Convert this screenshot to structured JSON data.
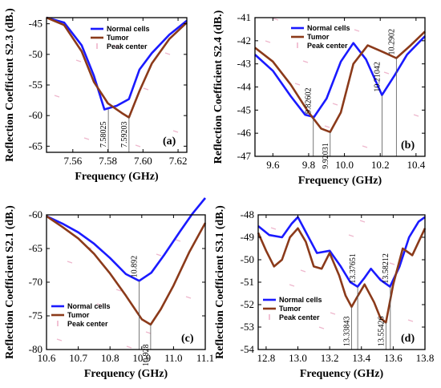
{
  "colors": {
    "normal": "#1a1aff",
    "tumor": "#8b3a1a",
    "peak": "#e89ab8"
  },
  "chart_data": [
    {
      "type": "line",
      "panel_label": "(a)",
      "xlabel": "Frequency (GHz)",
      "ylabel": "Reflection Coefficient S2.3 (dB.)",
      "xlim": [
        7.545,
        7.625
      ],
      "ylim": [
        -66,
        -44
      ],
      "xticks": [
        7.56,
        7.58,
        7.6,
        7.62
      ],
      "xtick_labels": [
        "7.56",
        "7.58",
        "7.60",
        "7.62"
      ],
      "yticks": [
        -45,
        -50,
        -55,
        -60,
        -65
      ],
      "ytick_labels": [
        "-45",
        "-50",
        "-55",
        "-60",
        "-65"
      ],
      "legend": {
        "placement": "top-center",
        "entries": [
          "Normal cells",
          "Tumor",
          "Peak center"
        ]
      },
      "series": [
        {
          "name": "Normal cells",
          "x": [
            7.545,
            7.555,
            7.565,
            7.572,
            7.578,
            7.585,
            7.592,
            7.598,
            7.605,
            7.615,
            7.625
          ],
          "values": [
            -44.0,
            -44.8,
            -48.5,
            -53.5,
            -59.0,
            -58.4,
            -57.3,
            -52.5,
            -49.8,
            -46.8,
            -44.5
          ]
        },
        {
          "name": "Tumor",
          "x": [
            7.545,
            7.555,
            7.565,
            7.572,
            7.58,
            7.588,
            7.592,
            7.598,
            7.605,
            7.615,
            7.625
          ],
          "values": [
            -44.0,
            -45.2,
            -49.5,
            -54.5,
            -58.0,
            -59.6,
            -60.3,
            -56.0,
            -51.5,
            -47.5,
            -44.8
          ]
        }
      ],
      "peaks": [
        {
          "x": 7.58025,
          "y": -59.0,
          "label": "7.58025"
        },
        {
          "x": 7.59203,
          "y": -60.3,
          "label": "7.59203"
        }
      ]
    },
    {
      "type": "line",
      "panel_label": "(b)",
      "xlabel": "Frequency (GHz)",
      "ylabel": "Reflection Coefficient S2.4 (dB.)",
      "xlim": [
        9.5,
        10.45
      ],
      "ylim": [
        -47,
        -41
      ],
      "xticks": [
        9.6,
        9.8,
        10.0,
        10.2,
        10.4
      ],
      "xtick_labels": [
        "9.6",
        "9.8",
        "10.0",
        "10.2",
        "10.4"
      ],
      "yticks": [
        -41,
        -42,
        -43,
        -44,
        -45,
        -46,
        -47
      ],
      "ytick_labels": [
        "-41",
        "-42",
        "-43",
        "-44",
        "-45",
        "-46",
        "-47"
      ],
      "legend": {
        "placement": "top-center",
        "entries": [
          "Normal cells",
          "Tumor",
          "Peak center"
        ]
      },
      "series": [
        {
          "name": "Normal cells",
          "x": [
            9.5,
            9.6,
            9.7,
            9.78,
            9.83,
            9.9,
            9.98,
            10.05,
            10.12,
            10.21,
            10.28,
            10.35,
            10.45
          ],
          "values": [
            -42.6,
            -43.3,
            -44.4,
            -45.2,
            -45.3,
            -44.5,
            -42.9,
            -42.1,
            -42.8,
            -44.35,
            -43.5,
            -42.6,
            -41.8
          ]
        },
        {
          "name": "Tumor",
          "x": [
            9.5,
            9.6,
            9.7,
            9.8,
            9.87,
            9.92,
            9.98,
            10.05,
            10.13,
            10.22,
            10.29,
            10.37,
            10.45
          ],
          "values": [
            -42.3,
            -42.9,
            -43.9,
            -45.1,
            -45.8,
            -45.95,
            -45.1,
            -43.0,
            -42.2,
            -42.5,
            -42.75,
            -42.2,
            -41.6
          ]
        }
      ],
      "peaks": [
        {
          "x": 9.82602,
          "y": -45.3,
          "label": "9.82602"
        },
        {
          "x": 9.92031,
          "y": -45.95,
          "label": "9.92031"
        },
        {
          "x": 10.21042,
          "y": -44.35,
          "label": "10.21042"
        },
        {
          "x": 10.2902,
          "y": -42.75,
          "label": "10.2902"
        }
      ]
    },
    {
      "type": "line",
      "panel_label": "(c)",
      "xlabel": "Frequency (GHz)",
      "ylabel": "Reflection Coefficient S2.1 (dB.)",
      "xlim": [
        10.6,
        11.1
      ],
      "ylim": [
        -80,
        -60
      ],
      "xticks": [
        10.6,
        10.7,
        10.8,
        10.9,
        11.0,
        11.1
      ],
      "xtick_labels": [
        "10.6",
        "10.7",
        "10.8",
        "10.9",
        "11.0",
        "11.1"
      ],
      "yticks": [
        -60,
        -65,
        -70,
        -75,
        -80
      ],
      "ytick_labels": [
        "-60",
        "-65",
        "-70",
        "-75",
        "-80"
      ],
      "legend": {
        "placement": "bottom-left",
        "entries": [
          "Normal cells",
          "Tumor",
          "Peak center"
        ]
      },
      "series": [
        {
          "name": "Normal cells",
          "x": [
            10.6,
            10.65,
            10.7,
            10.75,
            10.8,
            10.85,
            10.892,
            10.93,
            10.97,
            11.02,
            11.06,
            11.1
          ],
          "values": [
            -60.2,
            -61.3,
            -62.6,
            -64.3,
            -66.4,
            -68.8,
            -69.8,
            -68.6,
            -66.0,
            -62.5,
            -59.8,
            -57.5
          ]
        },
        {
          "name": "Tumor",
          "x": [
            10.6,
            10.65,
            10.7,
            10.75,
            10.8,
            10.85,
            10.9,
            10.928,
            10.96,
            11.0,
            11.05,
            11.1
          ],
          "values": [
            -60.2,
            -61.8,
            -63.5,
            -65.8,
            -68.7,
            -72.0,
            -75.5,
            -76.3,
            -74.0,
            -70.5,
            -65.5,
            -61.2
          ]
        }
      ],
      "peaks": [
        {
          "x": 10.892,
          "y": -69.8,
          "label": "10.892"
        },
        {
          "x": 10.928,
          "y": -76.3,
          "label": "10.928"
        }
      ]
    },
    {
      "type": "line",
      "panel_label": "(d)",
      "xlabel": "Frequency (GHz)",
      "ylabel": "Reflection Coefficient S3.1 (dB.)",
      "xlim": [
        12.75,
        13.8
      ],
      "ylim": [
        -54,
        -48
      ],
      "xticks": [
        12.8,
        13.0,
        13.2,
        13.4,
        13.6,
        13.8
      ],
      "xtick_labels": [
        "12.8",
        "13.0",
        "13.2",
        "13.4",
        "13.6",
        "13.8"
      ],
      "yticks": [
        -48,
        -49,
        -50,
        -51,
        -52,
        -53,
        -54
      ],
      "ytick_labels": [
        "-48",
        "-49",
        "-50",
        "-51",
        "-52",
        "-53",
        "-54"
      ],
      "legend": {
        "placement": "bottom-left",
        "entries": [
          "Normal cells",
          "Tumor",
          "Peak center"
        ]
      },
      "series": [
        {
          "name": "Normal cells",
          "x": [
            12.75,
            12.82,
            12.9,
            12.96,
            13.0,
            13.06,
            13.12,
            13.2,
            13.27,
            13.33,
            13.376,
            13.42,
            13.46,
            13.52,
            13.58,
            13.64,
            13.7,
            13.76,
            13.8
          ],
          "values": [
            -48.5,
            -48.9,
            -49.0,
            -48.4,
            -48.1,
            -48.9,
            -49.7,
            -49.6,
            -50.3,
            -51.0,
            -51.2,
            -50.8,
            -50.4,
            -50.9,
            -51.2,
            -50.3,
            -49.0,
            -48.3,
            -48.1
          ]
        },
        {
          "name": "Tumor",
          "x": [
            12.75,
            12.8,
            12.85,
            12.9,
            12.95,
            13.0,
            13.05,
            13.1,
            13.15,
            13.2,
            13.26,
            13.3,
            13.338,
            13.37,
            13.42,
            13.48,
            13.52,
            13.554,
            13.6,
            13.66,
            13.72,
            13.8
          ],
          "values": [
            -48.8,
            -49.6,
            -50.3,
            -50.0,
            -49.0,
            -48.6,
            -49.2,
            -50.3,
            -50.4,
            -49.7,
            -50.7,
            -51.6,
            -52.1,
            -51.7,
            -51.1,
            -51.9,
            -52.6,
            -52.8,
            -51.1,
            -49.5,
            -49.8,
            -48.6
          ]
        }
      ],
      "peaks": [
        {
          "x": 13.33843,
          "y": -52.1,
          "label": "13.33843"
        },
        {
          "x": 13.37651,
          "y": -51.2,
          "label": "13.37651"
        },
        {
          "x": 13.55426,
          "y": -52.8,
          "label": "13.55426"
        },
        {
          "x": 13.58212,
          "y": -51.2,
          "label": "13.58212"
        }
      ]
    }
  ]
}
